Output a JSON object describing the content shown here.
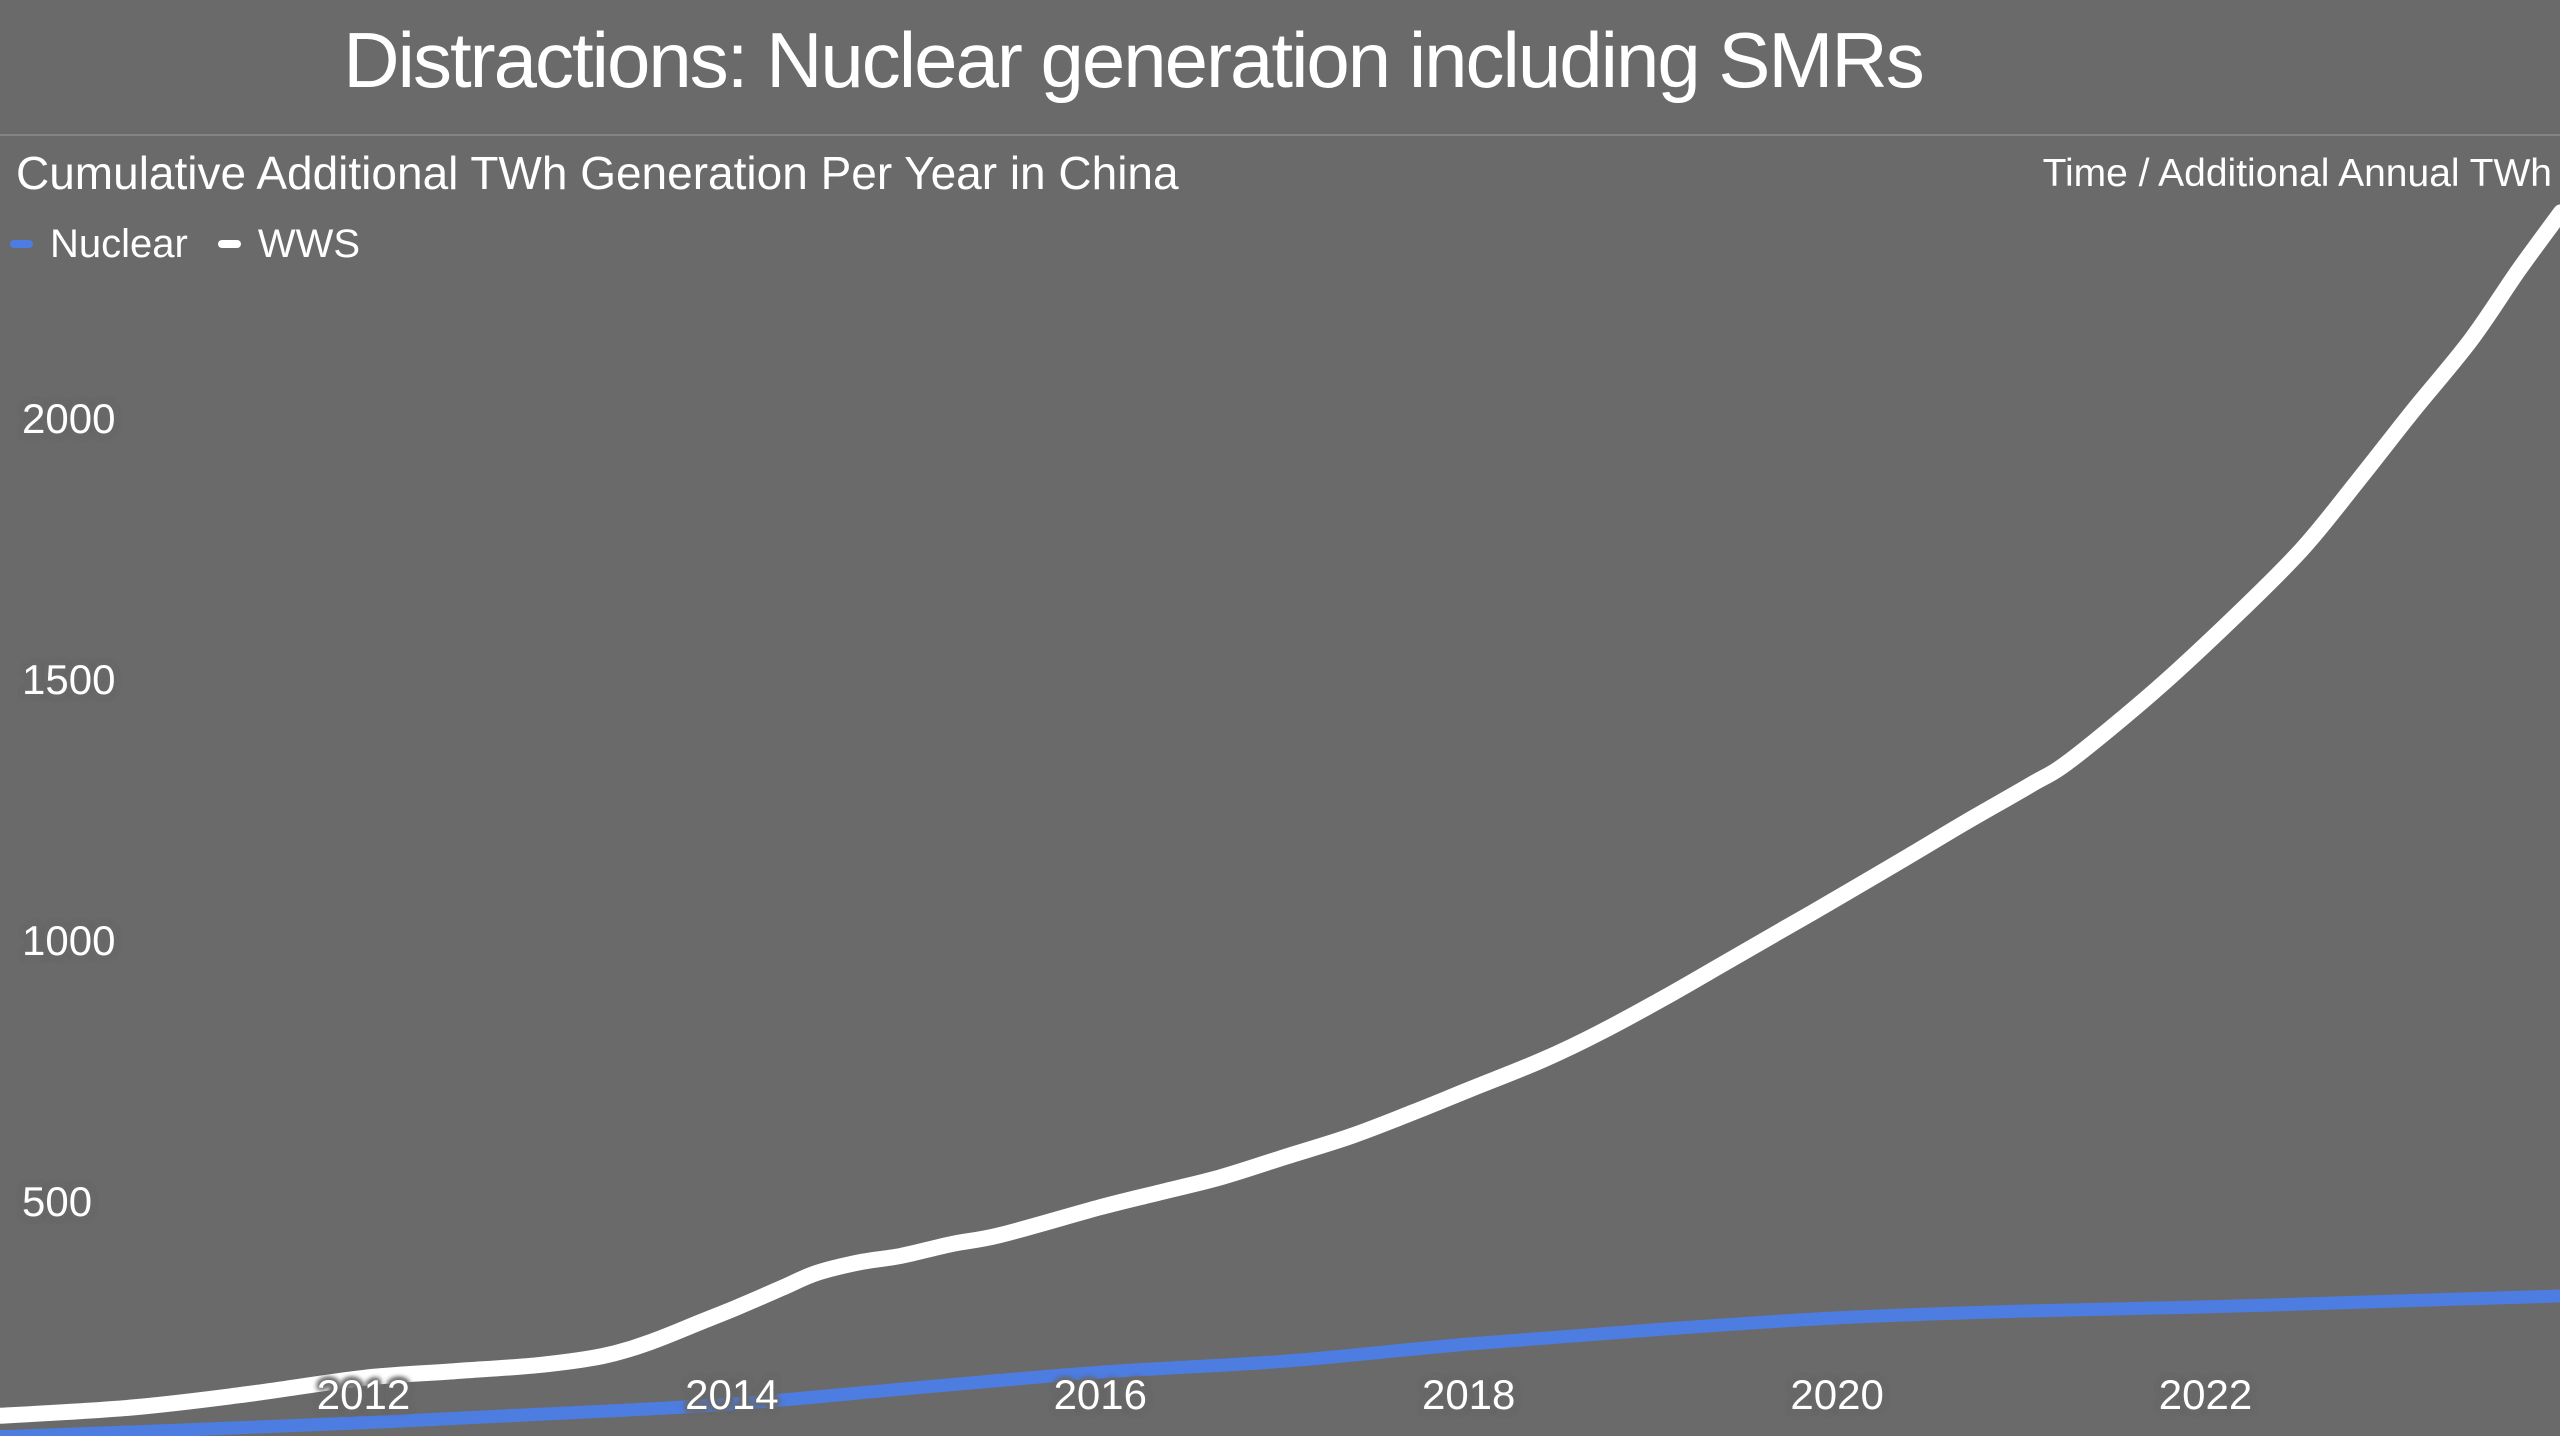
{
  "page": {
    "background_color": "#6a6a6a",
    "text_color": "#ffffff",
    "accent_blue": "#4e7de2"
  },
  "header": {
    "title": "Distractions: Nuclear generation including SMRs"
  },
  "chart": {
    "subtitle": "Cumulative Additional TWh Generation Per Year in China",
    "corner_label": "Time / Additional Annual TWh"
  },
  "legend": {
    "items": [
      {
        "label": "Nuclear",
        "color": "#4e7de2"
      },
      {
        "label": "WWS",
        "color": "#ffffff"
      }
    ]
  },
  "chart_data": {
    "type": "line",
    "title": "Cumulative Additional TWh Generation Per Year in China",
    "xlabel": "Time",
    "ylabel": "Additional Annual TWh",
    "grid": false,
    "legend_position": "top-left",
    "x_range_visible": [
      2010.0,
      2023.95
    ],
    "y_range_visible": [
      50,
      2800
    ],
    "x_ticks": [
      2012,
      2014,
      2016,
      2018,
      2020,
      2022
    ],
    "y_ticks": [
      2000,
      1500,
      1000,
      500
    ],
    "series": [
      {
        "name": "Nuclear",
        "color": "#4e7de2",
        "stroke_width": 13,
        "points": [
          [
            2009.9,
            48
          ],
          [
            2010.0,
            50
          ],
          [
            2011.0,
            63
          ],
          [
            2012.0,
            77
          ],
          [
            2013.0,
            94
          ],
          [
            2014.0,
            113
          ],
          [
            2015.0,
            144
          ],
          [
            2016.0,
            174
          ],
          [
            2017.0,
            195
          ],
          [
            2018.0,
            228
          ],
          [
            2019.0,
            255
          ],
          [
            2020.0,
            278
          ],
          [
            2021.0,
            291
          ],
          [
            2022.0,
            299
          ],
          [
            2023.0,
            310
          ],
          [
            2023.93,
            320
          ]
        ]
      },
      {
        "name": "WWS",
        "color": "#ffffff",
        "stroke_width": 16,
        "points": [
          [
            2009.9,
            88
          ],
          [
            2010.7,
            105
          ],
          [
            2011.33,
            130
          ],
          [
            2012.0,
            163
          ],
          [
            2012.5,
            176
          ],
          [
            2012.96,
            188
          ],
          [
            2013.3,
            205
          ],
          [
            2013.56,
            232
          ],
          [
            2013.83,
            270
          ],
          [
            2014.02,
            297
          ],
          [
            2014.27,
            335
          ],
          [
            2014.46,
            364
          ],
          [
            2014.7,
            385
          ],
          [
            2014.92,
            397
          ],
          [
            2015.2,
            420
          ],
          [
            2015.46,
            437
          ],
          [
            2016.0,
            490
          ],
          [
            2016.33,
            519
          ],
          [
            2016.66,
            548
          ],
          [
            2017.0,
            586
          ],
          [
            2017.36,
            626
          ],
          [
            2017.7,
            672
          ],
          [
            2018.0,
            715
          ],
          [
            2018.4,
            772
          ],
          [
            2018.72,
            826
          ],
          [
            2019.07,
            893
          ],
          [
            2019.42,
            964
          ],
          [
            2019.75,
            1031
          ],
          [
            2020.0,
            1082
          ],
          [
            2020.4,
            1165
          ],
          [
            2020.7,
            1228
          ],
          [
            2021.05,
            1299
          ],
          [
            2021.27,
            1347
          ],
          [
            2021.73,
            1481
          ],
          [
            2022.14,
            1615
          ],
          [
            2022.52,
            1749
          ],
          [
            2022.83,
            1883
          ],
          [
            2023.13,
            2017
          ],
          [
            2023.44,
            2151
          ],
          [
            2023.7,
            2285
          ],
          [
            2023.93,
            2396
          ]
        ]
      }
    ]
  }
}
